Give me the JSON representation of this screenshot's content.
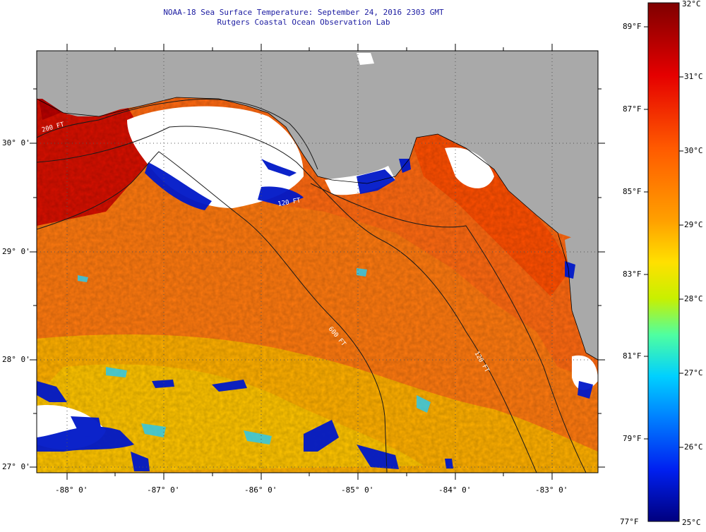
{
  "title": "NOAA-18 Sea Surface Temperature:  September 24, 2016 2303 GMT",
  "subtitle": "Rutgers Coastal Ocean Observation Lab",
  "latitude_labels": [
    "30° 0'",
    "29° 0'",
    "28° 0'",
    "27° 0'"
  ],
  "longitude_labels": [
    "-88° 0'",
    "-87° 0'",
    "-86° 0'",
    "-85° 0'",
    "-84° 0'",
    "-83° 0'"
  ],
  "isobath_labels": [
    "200 FT",
    "120 FT",
    "600 FT",
    "120 FT"
  ],
  "colorbar": {
    "celsius_labels": [
      "32°C",
      "31°C",
      "30°C",
      "29°C",
      "28°C",
      "27°C",
      "26°C",
      "25°C"
    ],
    "fahrenheit_labels": [
      "89°F",
      "87°F",
      "85°F",
      "83°F",
      "81°F",
      "79°F",
      "77°F"
    ],
    "min_celsius": 25,
    "max_celsius": 32
  },
  "colors": {
    "land": "#a9a9a9",
    "cloud": "#ffffff",
    "title_text": "#1a1aa0"
  }
}
